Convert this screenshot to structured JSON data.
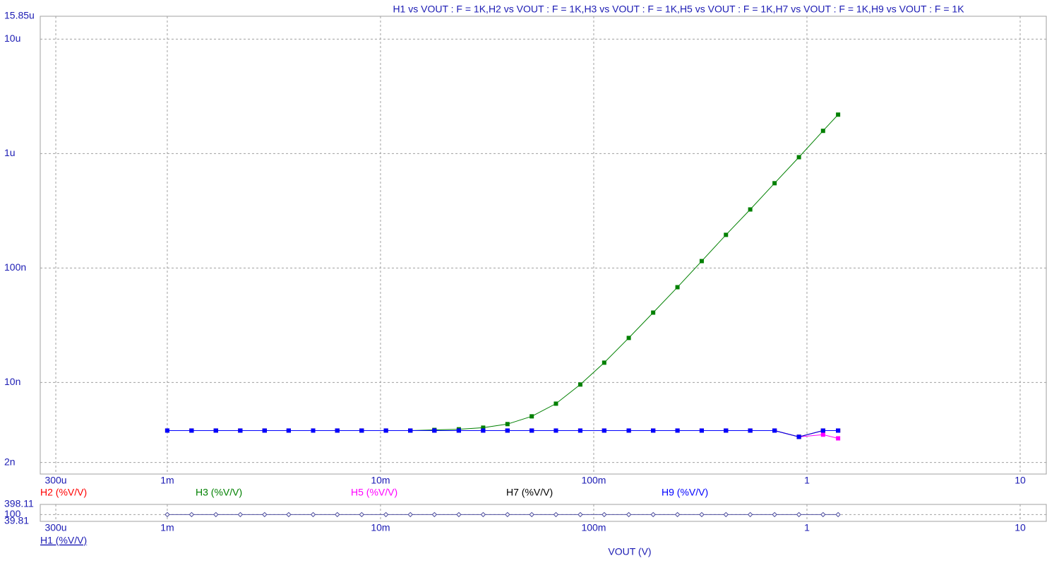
{
  "chart_data": [
    {
      "type": "line",
      "title": "H1 vs VOUT : F = 1K,H2 vs VOUT : F = 1K,H3 vs VOUT : F = 1K,H5 vs VOUT : F = 1K,H7 vs VOUT : F = 1K,H9 vs VOUT : F = 1K",
      "x": [
        0.001,
        0.0013,
        0.00169,
        0.0022,
        0.00286,
        0.00371,
        0.00483,
        0.00627,
        0.00816,
        0.0106,
        0.0138,
        0.0179,
        0.0233,
        0.0303,
        0.0394,
        0.0512,
        0.0665,
        0.0865,
        0.112,
        0.146,
        0.19,
        0.247,
        0.321,
        0.417,
        0.542,
        0.705,
        0.917,
        1.19,
        1.4
      ],
      "xlim": [
        0.0002536,
        13.26
      ],
      "log_x": true,
      "xticks": [
        {
          "value": 0.0003,
          "label": "300u"
        },
        {
          "value": 0.001,
          "label": "1m"
        },
        {
          "value": 0.01,
          "label": "10m"
        },
        {
          "value": 0.1,
          "label": "100m"
        },
        1,
        10
      ],
      "ylim": [
        1.585e-09,
        1.585e-05
      ],
      "log_y": true,
      "yticks": [
        {
          "value": 1.585e-05,
          "label": "15.85u"
        },
        {
          "value": 1e-05,
          "label": "10u"
        },
        {
          "value": 1e-06,
          "label": "1u"
        },
        {
          "value": 1e-07,
          "label": "100n"
        },
        {
          "value": 1e-08,
          "label": "10n"
        },
        {
          "value": 2e-09,
          "label": "2n"
        }
      ],
      "grid": true,
      "series": [
        {
          "name": "H2 (%V/V)",
          "color": "#ff0000",
          "marker": "square",
          "values": [
            3.8e-09,
            3.8e-09,
            3.8e-09,
            3.8e-09,
            3.8e-09,
            3.8e-09,
            3.8e-09,
            3.8e-09,
            3.8e-09,
            3.8e-09,
            3.8e-09,
            3.8e-09,
            3.8e-09,
            3.8e-09,
            3.8e-09,
            3.8e-09,
            3.8e-09,
            3.8e-09,
            3.8e-09,
            3.8e-09,
            3.8e-09,
            3.8e-09,
            3.8e-09,
            3.8e-09,
            3.8e-09,
            3.8e-09,
            3.35e-09,
            3.8e-09,
            3.8e-09
          ]
        },
        {
          "name": "H3 (%V/V)",
          "color": "#008000",
          "marker": "square",
          "values": [
            3.8e-09,
            3.8e-09,
            3.8e-09,
            3.8e-09,
            3.8e-09,
            3.8e-09,
            3.8e-09,
            3.8e-09,
            3.8e-09,
            3.8e-09,
            3.8e-09,
            3.85e-09,
            3.9e-09,
            4.03e-09,
            4.33e-09,
            5.06e-09,
            6.53e-09,
            9.6e-09,
            1.49e-08,
            2.45e-08,
            4.08e-08,
            6.8e-08,
            1.15e-07,
            1.95e-07,
            3.25e-07,
            5.51e-07,
            9.3e-07,
            1.58e-06,
            2.19e-06
          ]
        },
        {
          "name": "H5 (%V/V)",
          "color": "#ff00ff",
          "marker": "square",
          "values": [
            3.8e-09,
            3.8e-09,
            3.8e-09,
            3.8e-09,
            3.8e-09,
            3.8e-09,
            3.8e-09,
            3.8e-09,
            3.8e-09,
            3.8e-09,
            3.8e-09,
            3.8e-09,
            3.8e-09,
            3.8e-09,
            3.8e-09,
            3.8e-09,
            3.8e-09,
            3.8e-09,
            3.8e-09,
            3.8e-09,
            3.8e-09,
            3.8e-09,
            3.8e-09,
            3.8e-09,
            3.8e-09,
            3.8e-09,
            3.35e-09,
            3.5e-09,
            3.25e-09
          ]
        },
        {
          "name": "H7 (%V/V)",
          "color": "#000000",
          "marker": "square",
          "values": [
            3.8e-09,
            3.8e-09,
            3.8e-09,
            3.8e-09,
            3.8e-09,
            3.8e-09,
            3.8e-09,
            3.8e-09,
            3.8e-09,
            3.8e-09,
            3.8e-09,
            3.8e-09,
            3.8e-09,
            3.8e-09,
            3.8e-09,
            3.8e-09,
            3.8e-09,
            3.8e-09,
            3.8e-09,
            3.8e-09,
            3.8e-09,
            3.8e-09,
            3.8e-09,
            3.8e-09,
            3.8e-09,
            3.8e-09,
            3.35e-09,
            3.8e-09,
            3.8e-09
          ]
        },
        {
          "name": "H9 (%V/V)",
          "color": "#0000ff",
          "marker": "square",
          "values": [
            3.8e-09,
            3.8e-09,
            3.8e-09,
            3.8e-09,
            3.8e-09,
            3.8e-09,
            3.8e-09,
            3.8e-09,
            3.8e-09,
            3.8e-09,
            3.8e-09,
            3.8e-09,
            3.8e-09,
            3.8e-09,
            3.8e-09,
            3.8e-09,
            3.8e-09,
            3.8e-09,
            3.8e-09,
            3.8e-09,
            3.8e-09,
            3.8e-09,
            3.8e-09,
            3.8e-09,
            3.8e-09,
            3.8e-09,
            3.35e-09,
            3.8e-09,
            3.8e-09
          ]
        }
      ]
    },
    {
      "type": "line",
      "xlabel": "VOUT (V)",
      "x": [
        0.001,
        0.0013,
        0.00169,
        0.0022,
        0.00286,
        0.00371,
        0.00483,
        0.00627,
        0.00816,
        0.0106,
        0.0138,
        0.0179,
        0.0233,
        0.0303,
        0.0394,
        0.0512,
        0.0665,
        0.0865,
        0.112,
        0.146,
        0.19,
        0.247,
        0.321,
        0.417,
        0.542,
        0.705,
        0.917,
        1.19,
        1.4
      ],
      "xlim": [
        0.0002536,
        13.26
      ],
      "log_x": true,
      "xticks": [
        {
          "value": 0.0003,
          "label": "300u"
        },
        {
          "value": 0.001,
          "label": "1m"
        },
        {
          "value": 0.01,
          "label": "10m"
        },
        {
          "value": 0.1,
          "label": "100m"
        },
        1,
        10
      ],
      "ylim": [
        39.81,
        398.11
      ],
      "log_y": true,
      "yticks": [
        398.11,
        100,
        39.81
      ],
      "grid": true,
      "series": [
        {
          "name": "H1 (%V/V)",
          "color": "#5050a0",
          "marker": "diamond",
          "values": [
            100,
            100,
            100,
            100,
            100,
            100,
            100,
            100,
            100,
            100,
            100,
            100,
            100,
            100,
            100,
            100,
            100,
            100,
            100,
            100,
            100,
            100,
            100,
            100,
            100,
            100,
            100,
            100,
            100
          ]
        }
      ]
    }
  ]
}
